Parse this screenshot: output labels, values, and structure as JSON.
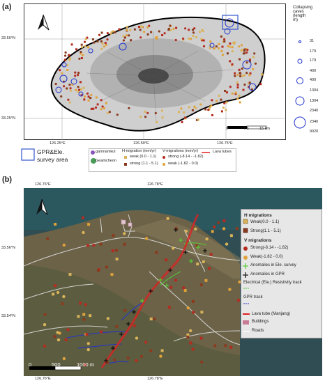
{
  "panel_a": {
    "label": "(a)",
    "lat_ticks": [
      "33.50°N",
      "33.25°N"
    ],
    "lon_ticks": [
      "126.25°E",
      "126.50°E",
      "126.75°E"
    ],
    "scale": {
      "zero": "0",
      "mid": "7.5",
      "end": "15 km"
    },
    "caves_legend": {
      "title_lines": [
        "Collapsing",
        "caves",
        "(length",
        "m)"
      ],
      "rows": [
        {
          "lines": [
            "31",
            "179"
          ]
        },
        {
          "lines": [
            "179",
            "400"
          ]
        },
        {
          "lines": [
            "400",
            "1304"
          ]
        },
        {
          "lines": [
            "1304",
            "2340"
          ]
        },
        {
          "lines": [
            "2340",
            "9020"
          ]
        }
      ]
    },
    "bottom_legend": {
      "survey_label_lines": [
        "GPR&Ele.",
        "survey area"
      ],
      "gamnamkul": "gamnamkul",
      "geomcheon": "Geamcheon",
      "h_title": "H-migration (mm/yr)",
      "h_weak": "weak (0.0 - 1.1)",
      "h_strong": "strong (1.1 - 5.1)",
      "v_title": "V-migrations (mm/yr)",
      "v_strong": "strong (-8.14 - -1.82)",
      "v_weak": "weak (-1.82 - 0.0)",
      "lava": "Lava tubes"
    }
  },
  "panel_b": {
    "label": "(b)",
    "lon_ticks_top": [
      "126.76°E",
      "126.78°E"
    ],
    "lon_ticks_bottom": [
      "126.76°E",
      "126.78°E"
    ],
    "lat_ticks": [
      "33.56°N",
      "33.54°N"
    ],
    "scale": {
      "zero": "0",
      "mid": "500",
      "end": "1000 m"
    },
    "legend": {
      "h_title": "H migrations",
      "h_weak": "Weak(0.0 - 1.1)",
      "h_strong": "Strong(1.1 - 5.1)",
      "v_title": "V migrations",
      "v_strong": "Strong(-8.14 - -1.82)",
      "v_weak": "Weak(-1.82 - 0.0)",
      "ele_anom": "Anomalies in Ele. survey",
      "gpr_anom": "Anomalies in GPR",
      "ele_track": "Electrical (Ele.) Resistivity track",
      "gpr_track": "GPR track",
      "lava": "Lava tube (Manjang)",
      "buildings": "Buildings",
      "roads": "Roads"
    }
  },
  "colors": {
    "strong_v": "#b42b20",
    "weak_v": "#e0a23a",
    "h_weak": "#d9b35a",
    "h_strong": "#8a3a1e",
    "lava": "#e02020",
    "caves": "#2233cc",
    "ele": "#55cc33",
    "survey_box": "#3355cc",
    "gamnamkul": "#8855bb",
    "geomcheon": "#2a8a3a"
  }
}
